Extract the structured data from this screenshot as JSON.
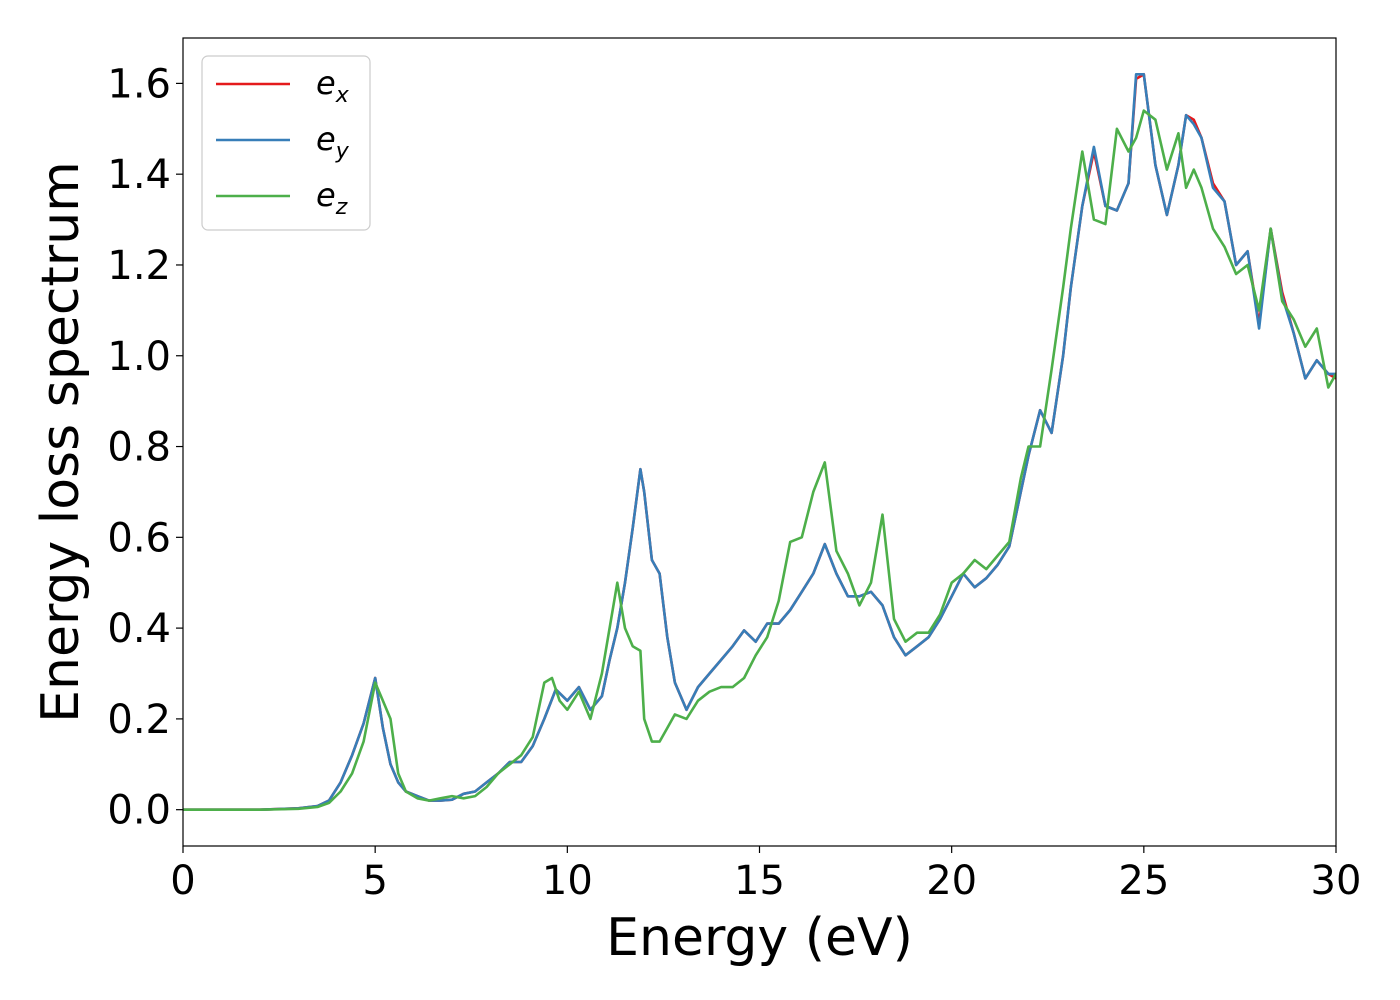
{
  "chart_data": {
    "type": "line",
    "xlabel": "Energy (eV)",
    "ylabel": "Energy loss spectrum",
    "xlim": [
      0,
      30
    ],
    "ylim": [
      -0.08,
      1.7
    ],
    "x_ticks": [
      0,
      5,
      10,
      15,
      20,
      25,
      30
    ],
    "y_ticks": [
      0.0,
      0.2,
      0.4,
      0.6,
      0.8,
      1.0,
      1.2,
      1.4,
      1.6
    ],
    "x_tick_labels": [
      "0",
      "5",
      "10",
      "15",
      "20",
      "25",
      "30"
    ],
    "y_tick_labels": [
      "0.0",
      "0.2",
      "0.4",
      "0.6",
      "0.8",
      "1.0",
      "1.2",
      "1.4",
      "1.6"
    ],
    "grid": false,
    "legend_position": "top-left",
    "series": [
      {
        "name": "e",
        "subscript": "x",
        "color": "#e41a1c",
        "x": [
          0,
          1,
          2,
          3,
          3.5,
          3.8,
          4.1,
          4.4,
          4.7,
          5.0,
          5.2,
          5.4,
          5.6,
          5.8,
          6.1,
          6.4,
          6.7,
          7.0,
          7.3,
          7.6,
          7.9,
          8.2,
          8.5,
          8.8,
          9.1,
          9.4,
          9.7,
          10.0,
          10.3,
          10.6,
          10.9,
          11.1,
          11.3,
          11.5,
          11.7,
          11.9,
          12.0,
          12.2,
          12.4,
          12.6,
          12.8,
          13.1,
          13.4,
          13.7,
          14.0,
          14.3,
          14.6,
          14.9,
          15.2,
          15.5,
          15.8,
          16.1,
          16.4,
          16.7,
          17.0,
          17.3,
          17.6,
          17.9,
          18.2,
          18.5,
          18.8,
          19.1,
          19.4,
          19.7,
          20.0,
          20.3,
          20.6,
          20.9,
          21.2,
          21.5,
          21.8,
          22.0,
          22.3,
          22.6,
          22.9,
          23.1,
          23.4,
          23.7,
          24.0,
          24.3,
          24.6,
          24.8,
          25.0,
          25.3,
          25.6,
          25.9,
          26.1,
          26.3,
          26.5,
          26.8,
          27.1,
          27.4,
          27.7,
          28.0,
          28.3,
          28.6,
          28.9,
          29.2,
          29.5,
          29.8,
          30.0
        ],
        "y": [
          0.0,
          0.0,
          0.0,
          0.003,
          0.008,
          0.02,
          0.06,
          0.12,
          0.19,
          0.29,
          0.18,
          0.1,
          0.06,
          0.04,
          0.03,
          0.02,
          0.02,
          0.022,
          0.035,
          0.04,
          0.06,
          0.08,
          0.105,
          0.105,
          0.14,
          0.2,
          0.265,
          0.24,
          0.27,
          0.22,
          0.25,
          0.33,
          0.4,
          0.5,
          0.62,
          0.75,
          0.7,
          0.55,
          0.52,
          0.38,
          0.28,
          0.22,
          0.27,
          0.3,
          0.33,
          0.36,
          0.395,
          0.37,
          0.41,
          0.41,
          0.44,
          0.48,
          0.52,
          0.585,
          0.52,
          0.47,
          0.47,
          0.48,
          0.45,
          0.38,
          0.34,
          0.36,
          0.38,
          0.42,
          0.47,
          0.52,
          0.49,
          0.51,
          0.54,
          0.58,
          0.7,
          0.78,
          0.88,
          0.83,
          1.0,
          1.15,
          1.33,
          1.45,
          1.33,
          1.32,
          1.38,
          1.61,
          1.62,
          1.42,
          1.31,
          1.42,
          1.53,
          1.52,
          1.48,
          1.38,
          1.34,
          1.2,
          1.23,
          1.07,
          1.28,
          1.14,
          1.05,
          0.95,
          0.99,
          0.96,
          0.95
        ]
      },
      {
        "name": "e",
        "subscript": "y",
        "color": "#377eb8",
        "x": [
          0,
          1,
          2,
          3,
          3.5,
          3.8,
          4.1,
          4.4,
          4.7,
          5.0,
          5.2,
          5.4,
          5.6,
          5.8,
          6.1,
          6.4,
          6.7,
          7.0,
          7.3,
          7.6,
          7.9,
          8.2,
          8.5,
          8.8,
          9.1,
          9.4,
          9.7,
          10.0,
          10.3,
          10.6,
          10.9,
          11.1,
          11.3,
          11.5,
          11.7,
          11.9,
          12.0,
          12.2,
          12.4,
          12.6,
          12.8,
          13.1,
          13.4,
          13.7,
          14.0,
          14.3,
          14.6,
          14.9,
          15.2,
          15.5,
          15.8,
          16.1,
          16.4,
          16.7,
          17.0,
          17.3,
          17.6,
          17.9,
          18.2,
          18.5,
          18.8,
          19.1,
          19.4,
          19.7,
          20.0,
          20.3,
          20.6,
          20.9,
          21.2,
          21.5,
          21.8,
          22.0,
          22.3,
          22.6,
          22.9,
          23.1,
          23.4,
          23.7,
          24.0,
          24.3,
          24.6,
          24.8,
          25.0,
          25.3,
          25.6,
          25.9,
          26.1,
          26.3,
          26.5,
          26.8,
          27.1,
          27.4,
          27.7,
          28.0,
          28.3,
          28.6,
          28.9,
          29.2,
          29.5,
          29.8,
          30.0
        ],
        "y": [
          0.0,
          0.0,
          0.0,
          0.003,
          0.008,
          0.02,
          0.06,
          0.12,
          0.19,
          0.29,
          0.18,
          0.1,
          0.06,
          0.04,
          0.03,
          0.02,
          0.02,
          0.022,
          0.035,
          0.04,
          0.06,
          0.08,
          0.105,
          0.105,
          0.14,
          0.2,
          0.265,
          0.24,
          0.27,
          0.22,
          0.25,
          0.33,
          0.4,
          0.5,
          0.62,
          0.75,
          0.7,
          0.55,
          0.52,
          0.38,
          0.28,
          0.22,
          0.27,
          0.3,
          0.33,
          0.36,
          0.395,
          0.37,
          0.41,
          0.41,
          0.44,
          0.48,
          0.52,
          0.585,
          0.52,
          0.47,
          0.47,
          0.48,
          0.45,
          0.38,
          0.34,
          0.36,
          0.38,
          0.42,
          0.47,
          0.52,
          0.49,
          0.51,
          0.54,
          0.58,
          0.7,
          0.78,
          0.88,
          0.83,
          1.0,
          1.15,
          1.33,
          1.46,
          1.33,
          1.32,
          1.38,
          1.62,
          1.62,
          1.42,
          1.31,
          1.42,
          1.53,
          1.51,
          1.48,
          1.37,
          1.34,
          1.2,
          1.23,
          1.06,
          1.28,
          1.13,
          1.05,
          0.95,
          0.99,
          0.96,
          0.96
        ]
      },
      {
        "name": "e",
        "subscript": "z",
        "color": "#4daf4a",
        "x": [
          0,
          1,
          2,
          3,
          3.5,
          3.8,
          4.1,
          4.4,
          4.7,
          5.0,
          5.2,
          5.4,
          5.6,
          5.8,
          6.1,
          6.4,
          6.7,
          7.0,
          7.3,
          7.6,
          7.9,
          8.2,
          8.5,
          8.8,
          9.1,
          9.4,
          9.6,
          9.8,
          10.0,
          10.3,
          10.6,
          10.9,
          11.1,
          11.3,
          11.5,
          11.7,
          11.9,
          12.0,
          12.2,
          12.4,
          12.6,
          12.8,
          13.1,
          13.4,
          13.7,
          14.0,
          14.3,
          14.6,
          14.9,
          15.2,
          15.5,
          15.8,
          16.1,
          16.4,
          16.7,
          17.0,
          17.3,
          17.6,
          17.9,
          18.2,
          18.5,
          18.8,
          19.1,
          19.4,
          19.7,
          20.0,
          20.3,
          20.6,
          20.9,
          21.2,
          21.5,
          21.8,
          22.0,
          22.3,
          22.6,
          22.9,
          23.1,
          23.4,
          23.7,
          24.0,
          24.3,
          24.6,
          24.8,
          25.0,
          25.3,
          25.6,
          25.9,
          26.1,
          26.3,
          26.5,
          26.8,
          27.1,
          27.4,
          27.7,
          28.0,
          28.3,
          28.6,
          28.9,
          29.2,
          29.5,
          29.8,
          30.0
        ],
        "y": [
          0.0,
          0.0,
          0.0,
          0.002,
          0.006,
          0.015,
          0.04,
          0.08,
          0.15,
          0.28,
          0.24,
          0.2,
          0.08,
          0.04,
          0.025,
          0.02,
          0.025,
          0.03,
          0.025,
          0.03,
          0.05,
          0.08,
          0.1,
          0.12,
          0.16,
          0.28,
          0.29,
          0.24,
          0.22,
          0.26,
          0.2,
          0.3,
          0.4,
          0.5,
          0.4,
          0.36,
          0.35,
          0.2,
          0.15,
          0.15,
          0.18,
          0.21,
          0.2,
          0.24,
          0.26,
          0.27,
          0.27,
          0.29,
          0.34,
          0.38,
          0.46,
          0.59,
          0.6,
          0.7,
          0.765,
          0.57,
          0.52,
          0.45,
          0.5,
          0.65,
          0.42,
          0.37,
          0.39,
          0.39,
          0.43,
          0.5,
          0.52,
          0.55,
          0.53,
          0.56,
          0.59,
          0.73,
          0.8,
          0.8,
          0.97,
          1.15,
          1.28,
          1.45,
          1.3,
          1.29,
          1.5,
          1.45,
          1.48,
          1.54,
          1.52,
          1.41,
          1.49,
          1.37,
          1.41,
          1.37,
          1.28,
          1.24,
          1.18,
          1.2,
          1.1,
          1.28,
          1.12,
          1.08,
          1.02,
          1.06,
          0.93,
          0.96
        ]
      }
    ]
  }
}
